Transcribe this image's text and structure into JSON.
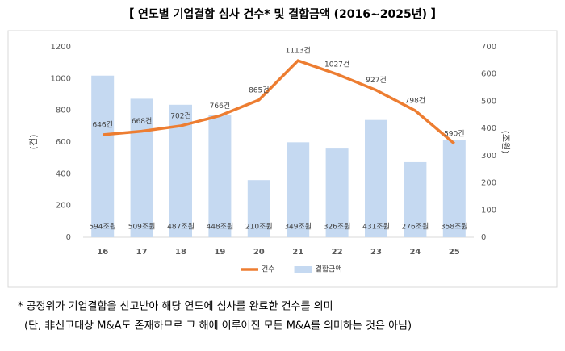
{
  "chart_data": {
    "type": "bar",
    "title": "【 연도별 기업결합 심사 건수* 및 결합금액 (2016~2025년) 】",
    "y_label": "(건)",
    "y2_label": "(조원)",
    "categories": [
      "16",
      "17",
      "18",
      "19",
      "20",
      "21",
      "22",
      "23",
      "24",
      "25"
    ],
    "series": [
      {
        "name": "건수",
        "type": "line",
        "color": "#ed7d31",
        "values": [
          646,
          668,
          702,
          766,
          865,
          1113,
          1027,
          927,
          798,
          590
        ],
        "value_labels": [
          "646건",
          "668건",
          "702건",
          "766건",
          "865건",
          "1113건",
          "1027건",
          "927건",
          "798건",
          "590건"
        ]
      },
      {
        "name": "결합금액",
        "type": "bar",
        "axis": "y2",
        "color": "#c5d9f1",
        "values": [
          594,
          509,
          487,
          448,
          210,
          349,
          326,
          431,
          276,
          358
        ],
        "value_labels": [
          "594조원",
          "509조원",
          "487조원",
          "448조원",
          "210조원",
          "349조원",
          "326조원",
          "431조원",
          "276조원",
          "358조원"
        ]
      }
    ],
    "ylim": [
      0,
      1200
    ],
    "yticks": [
      0,
      200,
      400,
      600,
      800,
      1000,
      1200
    ],
    "y2lim": [
      0,
      700
    ],
    "y2ticks": [
      0,
      100,
      200,
      300,
      400,
      500,
      600,
      700
    ],
    "grid": false,
    "notes": [
      "* 공정위가 기업결합을 신고받아 해당 연도에 심사를 완료한 건수를 의미",
      "(단, 非신고대상 M&A도 존재하므로 그 해에 이루어진 모든 M&A를 의미하는 것은 아님)"
    ]
  }
}
